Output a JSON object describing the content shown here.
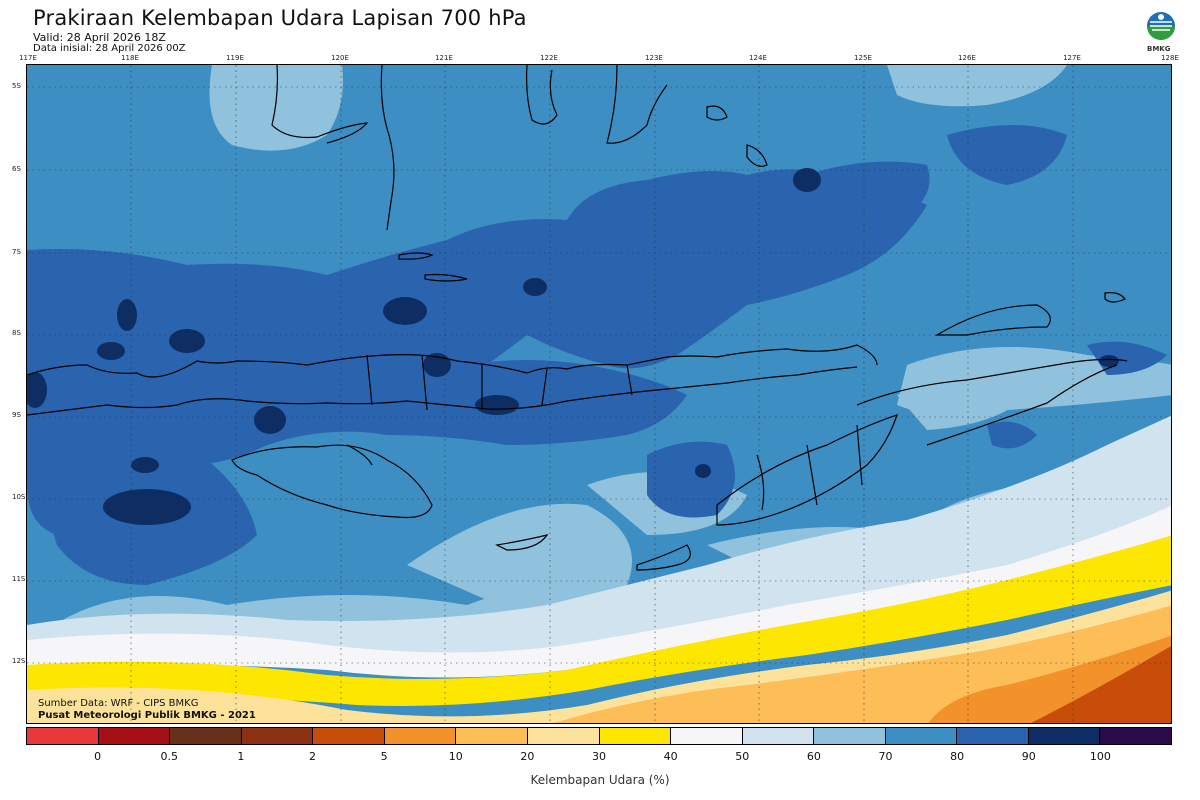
{
  "header": {
    "title": "Prakiraan Kelembapan Udara Lapisan 700 hPa",
    "valid": "Valid: 28 April 2026 18Z",
    "initial": "Data inisial: 28 April 2026 00Z"
  },
  "logo": {
    "text": "BMKG"
  },
  "map": {
    "lon_labels": [
      "117E",
      "118E",
      "119E",
      "120E",
      "121E",
      "122E",
      "123E",
      "124E",
      "125E",
      "126E",
      "127E",
      "128E"
    ],
    "lat_labels": [
      "5S",
      "6S",
      "7S",
      "8S",
      "9S",
      "10S",
      "11S",
      "12S"
    ],
    "credit_source": "Sumber Data: WRF - CIPS BMKG",
    "credit_org": "Pusat Meteorologi Publik BMKG - 2021"
  },
  "colorbar": {
    "colors": [
      "#e8383a",
      "#a50f15",
      "#67301a",
      "#8c3111",
      "#c84d0a",
      "#f3912b",
      "#fdbd57",
      "#fde29b",
      "#fde600",
      "#f6f6f8",
      "#d1e3ef",
      "#90c2de",
      "#3d8ec3",
      "#2a63ae",
      "#0d2d63",
      "#2b0a4a"
    ],
    "tick_labels": [
      "0",
      "0.5",
      "1",
      "2",
      "5",
      "10",
      "20",
      "30",
      "40",
      "50",
      "60",
      "70",
      "80",
      "90",
      "100"
    ],
    "label": "Kelembapan Udara (%)"
  }
}
